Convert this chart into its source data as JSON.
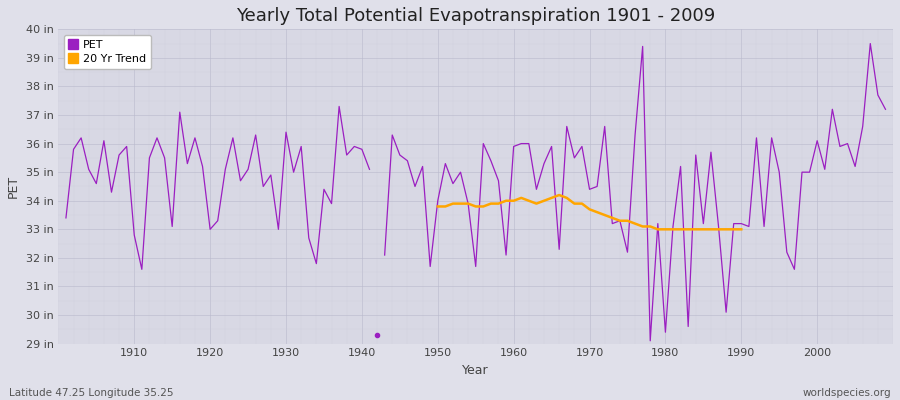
{
  "title": "Yearly Total Potential Evapotranspiration 1901 - 2009",
  "xlabel": "Year",
  "ylabel": "PET",
  "footer_left": "Latitude 47.25 Longitude 35.25",
  "footer_right": "worldspecies.org",
  "pet_color": "#9b1fc1",
  "trend_color": "#ffa500",
  "fig_bg_color": "#e0e0ea",
  "plot_bg_color": "#d8d8e4",
  "ylim_min": 29,
  "ylim_max": 40,
  "ytick_labels": [
    "29 in",
    "30 in",
    "31 in",
    "32 in",
    "33 in",
    "34 in",
    "35 in",
    "36 in",
    "37 in",
    "38 in",
    "39 in",
    "40 in"
  ],
  "ytick_values": [
    29,
    30,
    31,
    32,
    33,
    34,
    35,
    36,
    37,
    38,
    39,
    40
  ],
  "years_seg1": [
    1901,
    1902,
    1903,
    1904,
    1905,
    1906,
    1907,
    1908,
    1909,
    1910,
    1911,
    1912,
    1913,
    1914,
    1915,
    1916,
    1917,
    1918,
    1919,
    1920,
    1921,
    1922,
    1923,
    1924,
    1925,
    1926,
    1927,
    1928,
    1929,
    1930,
    1931,
    1932,
    1933,
    1934,
    1935,
    1936,
    1937,
    1938,
    1939,
    1940,
    1941
  ],
  "pet_seg1": [
    33.4,
    35.8,
    36.2,
    35.1,
    34.6,
    36.1,
    34.3,
    35.6,
    35.9,
    32.8,
    31.6,
    35.5,
    36.2,
    35.5,
    33.1,
    37.1,
    35.3,
    36.2,
    35.2,
    33.0,
    33.3,
    35.1,
    36.2,
    34.7,
    35.1,
    36.3,
    34.5,
    34.9,
    33.0,
    36.4,
    35.0,
    35.9,
    32.7,
    31.8,
    34.4,
    33.9,
    37.3,
    35.6,
    35.9,
    35.8,
    35.1
  ],
  "outlier_year": 1942,
  "outlier_value": 29.3,
  "years_seg2": [
    1943,
    1944,
    1945,
    1946,
    1947,
    1948,
    1949,
    1950,
    1951,
    1952,
    1953,
    1954,
    1955,
    1956,
    1957,
    1958,
    1959,
    1960,
    1961,
    1962,
    1963,
    1964,
    1965,
    1966,
    1967,
    1968,
    1969,
    1970,
    1971,
    1972,
    1973,
    1974,
    1975,
    1976,
    1977,
    1978,
    1979,
    1980,
    1981,
    1982,
    1983,
    1984,
    1985,
    1986,
    1987,
    1988,
    1989,
    1990,
    1991,
    1992,
    1993,
    1994,
    1995,
    1996,
    1997,
    1998,
    1999,
    2000,
    2001,
    2002,
    2003,
    2004,
    2005,
    2006,
    2007,
    2008,
    2009
  ],
  "pet_seg2": [
    32.1,
    36.3,
    35.6,
    35.4,
    34.5,
    35.2,
    31.7,
    34.0,
    35.3,
    34.6,
    35.0,
    33.9,
    31.7,
    36.0,
    35.4,
    34.7,
    32.1,
    35.9,
    36.0,
    36.0,
    34.4,
    35.3,
    35.9,
    32.3,
    36.6,
    35.5,
    35.9,
    34.4,
    34.5,
    36.6,
    33.2,
    33.3,
    32.2,
    36.3,
    39.4,
    29.1,
    33.2,
    29.4,
    33.1,
    35.2,
    29.6,
    35.6,
    33.2,
    35.7,
    33.1,
    30.1,
    33.2,
    33.2,
    33.1,
    36.2,
    33.1,
    36.2,
    35.0,
    32.2,
    31.6,
    35.0,
    35.0,
    36.1,
    35.1,
    37.2,
    35.9,
    36.0,
    35.2,
    36.6,
    39.5,
    37.7,
    37.2
  ],
  "trend_years": [
    1950,
    1951,
    1952,
    1953,
    1954,
    1955,
    1956,
    1957,
    1958,
    1959,
    1960,
    1961,
    1962,
    1963,
    1964,
    1965,
    1966,
    1967,
    1968,
    1969,
    1970,
    1971,
    1972,
    1973,
    1974,
    1975,
    1976,
    1977,
    1978,
    1979,
    1980,
    1981,
    1982,
    1983,
    1984,
    1985,
    1986,
    1987,
    1988,
    1989,
    1990
  ],
  "trend": [
    33.8,
    33.8,
    33.9,
    33.9,
    33.9,
    33.8,
    33.8,
    33.9,
    33.9,
    34.0,
    34.0,
    34.1,
    34.0,
    33.9,
    34.0,
    34.1,
    34.2,
    34.1,
    33.9,
    33.9,
    33.7,
    33.6,
    33.5,
    33.4,
    33.3,
    33.3,
    33.2,
    33.1,
    33.1,
    33.0,
    33.0,
    33.0,
    33.0,
    33.0,
    33.0,
    33.0,
    33.0,
    33.0,
    33.0,
    33.0,
    33.0
  ],
  "xtick_positions": [
    1910,
    1920,
    1930,
    1940,
    1950,
    1960,
    1970,
    1980,
    1990,
    2000
  ],
  "xlim_min": 1900,
  "xlim_max": 2010,
  "legend_pet_label": "PET",
  "legend_trend_label": "20 Yr Trend",
  "title_fontsize": 13,
  "axis_label_fontsize": 9,
  "tick_fontsize": 8,
  "footer_fontsize": 7.5
}
